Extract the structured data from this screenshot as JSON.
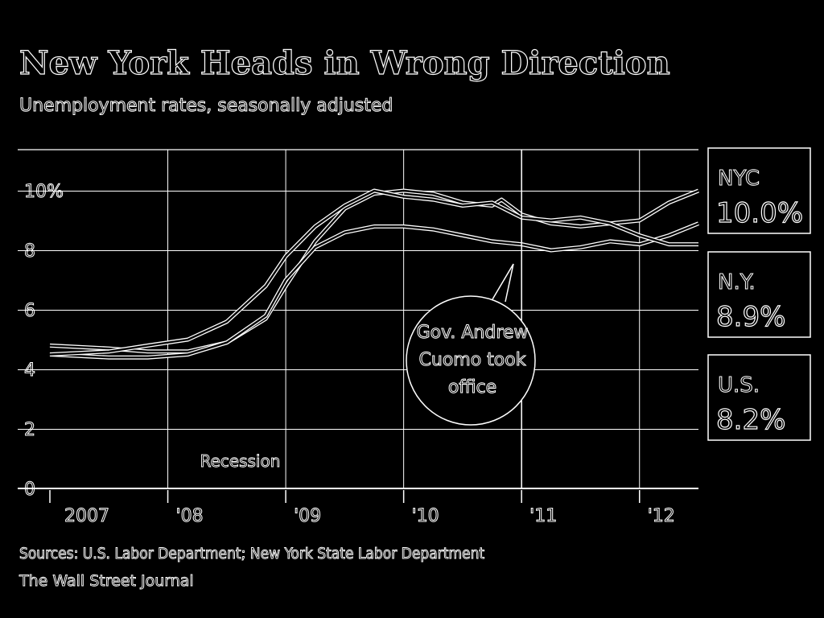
{
  "header": {
    "title": "New York Heads in Wrong Direction",
    "subtitle": "Unemployment rates, seasonally adjusted"
  },
  "footer": {
    "source": "Sources: U.S. Labor Department; New York State Labor Department",
    "credit": "The Wall Street Journal"
  },
  "colors": {
    "background": "#000000",
    "foreground": "#ffffff"
  },
  "chart_data": {
    "type": "line",
    "title": "New York Heads in Wrong Direction",
    "subtitle": "Unemployment rates, seasonally adjusted",
    "x_axis": {
      "range": [
        2007.0,
        2012.5
      ],
      "ticks": [
        {
          "value": 2007.0,
          "label": "2007"
        },
        {
          "value": 2008.0,
          "label": "'08"
        },
        {
          "value": 2009.0,
          "label": "'09"
        },
        {
          "value": 2010.0,
          "label": "'10"
        },
        {
          "value": 2011.0,
          "label": "'11"
        },
        {
          "value": 2012.0,
          "label": "'12"
        }
      ]
    },
    "y_axis": {
      "range": [
        0,
        11
      ],
      "ticks": [
        {
          "value": 0,
          "label": "0"
        },
        {
          "value": 2,
          "label": "2"
        },
        {
          "value": 4,
          "label": "4"
        },
        {
          "value": 6,
          "label": "6"
        },
        {
          "value": 8,
          "label": "8"
        },
        {
          "value": 10,
          "label": "10%"
        }
      ]
    },
    "grid": true,
    "recession": {
      "label": "Recession",
      "start": 2008.0,
      "end": 2009.5
    },
    "annotation": {
      "text": [
        "Gov. Andrew",
        "Cuomo took",
        "office"
      ],
      "x": 2011.0
    },
    "series": [
      {
        "name": "NYC",
        "value_label": "10.0%",
        "points": [
          [
            2007.0,
            4.8
          ],
          [
            2007.5,
            4.7
          ],
          [
            2007.83,
            4.6
          ],
          [
            2008.17,
            4.6
          ],
          [
            2008.5,
            4.9
          ],
          [
            2008.83,
            5.7
          ],
          [
            2009.0,
            6.8
          ],
          [
            2009.25,
            8.3
          ],
          [
            2009.5,
            9.4
          ],
          [
            2009.75,
            9.9
          ],
          [
            2010.0,
            10.0
          ],
          [
            2010.25,
            9.9
          ],
          [
            2010.5,
            9.6
          ],
          [
            2010.75,
            9.5
          ],
          [
            2010.83,
            9.7
          ],
          [
            2011.0,
            9.2
          ],
          [
            2011.25,
            8.9
          ],
          [
            2011.5,
            8.8
          ],
          [
            2011.75,
            8.9
          ],
          [
            2012.0,
            9.0
          ],
          [
            2012.25,
            9.6
          ],
          [
            2012.5,
            10.0
          ]
        ]
      },
      {
        "name": "N.Y.",
        "value_label": "8.9%",
        "points": [
          [
            2007.0,
            4.5
          ],
          [
            2007.5,
            4.4
          ],
          [
            2007.83,
            4.4
          ],
          [
            2008.17,
            4.5
          ],
          [
            2008.5,
            4.9
          ],
          [
            2008.83,
            5.8
          ],
          [
            2009.0,
            7.0
          ],
          [
            2009.25,
            8.1
          ],
          [
            2009.5,
            8.6
          ],
          [
            2009.75,
            8.8
          ],
          [
            2010.0,
            8.8
          ],
          [
            2010.25,
            8.7
          ],
          [
            2010.5,
            8.5
          ],
          [
            2010.75,
            8.3
          ],
          [
            2011.0,
            8.2
          ],
          [
            2011.25,
            8.0
          ],
          [
            2011.5,
            8.1
          ],
          [
            2011.75,
            8.3
          ],
          [
            2012.0,
            8.2
          ],
          [
            2012.25,
            8.5
          ],
          [
            2012.5,
            8.9
          ]
        ]
      },
      {
        "name": "U.S.",
        "value_label": "8.2%",
        "points": [
          [
            2007.0,
            4.5
          ],
          [
            2007.5,
            4.6
          ],
          [
            2007.83,
            4.8
          ],
          [
            2008.17,
            5.0
          ],
          [
            2008.5,
            5.6
          ],
          [
            2008.83,
            6.8
          ],
          [
            2009.0,
            7.8
          ],
          [
            2009.25,
            8.8
          ],
          [
            2009.5,
            9.5
          ],
          [
            2009.75,
            10.0
          ],
          [
            2010.0,
            9.8
          ],
          [
            2010.25,
            9.7
          ],
          [
            2010.5,
            9.5
          ],
          [
            2010.75,
            9.6
          ],
          [
            2011.0,
            9.1
          ],
          [
            2011.25,
            9.0
          ],
          [
            2011.5,
            9.1
          ],
          [
            2011.75,
            8.9
          ],
          [
            2012.0,
            8.5
          ],
          [
            2012.25,
            8.2
          ],
          [
            2012.5,
            8.2
          ]
        ]
      }
    ]
  }
}
